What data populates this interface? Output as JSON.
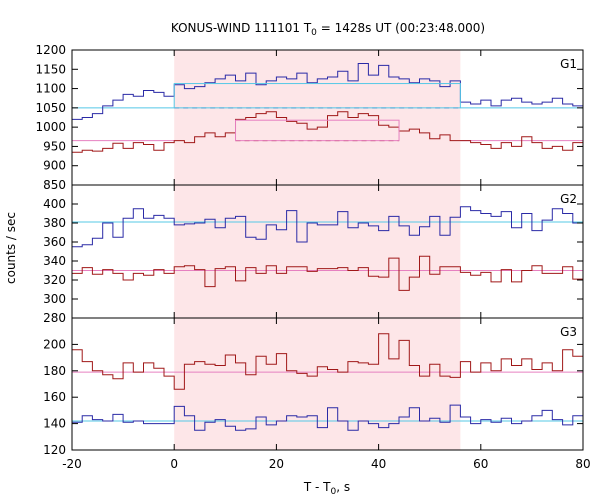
{
  "chart_data": {
    "type": "line",
    "title": "KONUS-WIND 111101 T₀ = 1428s UT (00:23:48.000)",
    "title_parts": {
      "prefix": "KONUS-WIND 111101 T",
      "sub": "0",
      "suffix": " = 1428s UT (00:23:48.000)"
    },
    "xlabel": "T - T₀, s",
    "xlabel_parts": {
      "prefix": "T - T",
      "sub": "0",
      "suffix": ", s"
    },
    "ylabel": "counts / sec",
    "xlim": [
      -20,
      80
    ],
    "x_ticks": [
      -20,
      0,
      20,
      40,
      60,
      80
    ],
    "shaded_interval": {
      "x": [
        0,
        56
      ],
      "color": "#fde6e8"
    },
    "colors": {
      "blue": "#2a2aa6",
      "red": "#a01818",
      "cyan": "#55c8e6",
      "pink": "#e680c0",
      "frame": "#000000"
    },
    "panels": [
      {
        "name": "G1",
        "ylim": [
          850,
          1200
        ],
        "y_ticks": [
          850,
          900,
          950,
          1000,
          1050,
          1100,
          1150,
          1200
        ],
        "series": [
          {
            "color": "blue",
            "x": [
              -20,
              -18,
              -16,
              -14,
              -12,
              -10,
              -8,
              -6,
              -4,
              -2,
              0,
              2,
              4,
              6,
              8,
              10,
              12,
              14,
              16,
              18,
              20,
              22,
              24,
              26,
              28,
              30,
              32,
              34,
              36,
              38,
              40,
              42,
              44,
              46,
              48,
              50,
              52,
              54,
              56,
              58,
              60,
              62,
              64,
              66,
              68,
              70,
              72,
              74,
              76,
              78
            ],
            "y": [
              1020,
              1025,
              1035,
              1055,
              1070,
              1085,
              1080,
              1095,
              1090,
              1080,
              1110,
              1100,
              1105,
              1115,
              1125,
              1135,
              1120,
              1140,
              1110,
              1120,
              1130,
              1125,
              1140,
              1115,
              1125,
              1130,
              1145,
              1120,
              1165,
              1135,
              1160,
              1130,
              1125,
              1115,
              1125,
              1120,
              1105,
              1120,
              1065,
              1060,
              1070,
              1055,
              1070,
              1075,
              1065,
              1060,
              1065,
              1075,
              1060,
              1055
            ]
          },
          {
            "color": "red",
            "x": [
              -20,
              -18,
              -16,
              -14,
              -12,
              -10,
              -8,
              -6,
              -4,
              -2,
              0,
              2,
              4,
              6,
              8,
              10,
              12,
              14,
              16,
              18,
              20,
              22,
              24,
              26,
              28,
              30,
              32,
              34,
              36,
              38,
              40,
              42,
              44,
              46,
              48,
              50,
              52,
              54,
              56,
              58,
              60,
              62,
              64,
              66,
              68,
              70,
              72,
              74,
              76,
              78
            ],
            "y": [
              935,
              940,
              938,
              945,
              958,
              945,
              960,
              955,
              940,
              960,
              965,
              960,
              975,
              985,
              975,
              985,
              1020,
              1025,
              1035,
              1040,
              1025,
              1015,
              1010,
              995,
              1000,
              1030,
              1040,
              1025,
              1035,
              1030,
              1005,
              1000,
              990,
              995,
              985,
              970,
              980,
              965,
              965,
              960,
              955,
              945,
              960,
              950,
              975,
              960,
              945,
              950,
              940,
              960
            ]
          }
        ],
        "levels": [
          {
            "color": "cyan",
            "y": 1050,
            "x": [
              -20,
              0
            ],
            "style": "solid"
          },
          {
            "color": "cyan",
            "y": 1050,
            "x": [
              56,
              80
            ],
            "style": "solid"
          },
          {
            "color": "blue",
            "y": 1050,
            "x": [
              0,
              56
            ],
            "style": "dashed"
          },
          {
            "color": "pink",
            "y": 965,
            "x": [
              -20,
              0
            ],
            "style": "solid"
          },
          {
            "color": "pink",
            "y": 965,
            "x": [
              56,
              80
            ],
            "style": "solid"
          },
          {
            "color": "red",
            "y": 965,
            "x": [
              12,
              44
            ],
            "style": "dashed"
          }
        ],
        "boxes": [
          {
            "color": "cyan",
            "x": [
              0,
              56
            ],
            "y": [
              1050,
              1113
            ]
          },
          {
            "color": "pink",
            "x": [
              12,
              44
            ],
            "y": [
              965,
              1018
            ]
          }
        ]
      },
      {
        "name": "G2",
        "ylim": [
          280,
          420
        ],
        "y_ticks": [
          280,
          300,
          320,
          340,
          360,
          380,
          400
        ],
        "series": [
          {
            "color": "blue",
            "x": [
              -20,
              -18,
              -16,
              -14,
              -12,
              -10,
              -8,
              -6,
              -4,
              -2,
              0,
              2,
              4,
              6,
              8,
              10,
              12,
              14,
              16,
              18,
              20,
              22,
              24,
              26,
              28,
              30,
              32,
              34,
              36,
              38,
              40,
              42,
              44,
              46,
              48,
              50,
              52,
              54,
              56,
              58,
              60,
              62,
              64,
              66,
              68,
              70,
              72,
              74,
              76,
              78
            ],
            "y": [
              355,
              357,
              364,
              380,
              365,
              385,
              395,
              385,
              388,
              385,
              378,
              379,
              380,
              384,
              375,
              385,
              387,
              365,
              363,
              378,
              373,
              393,
              360,
              380,
              378,
              378,
              392,
              375,
              380,
              377,
              372,
              387,
              377,
              367,
              376,
              387,
              367,
              386,
              397,
              393,
              390,
              387,
              392,
              375,
              390,
              372,
              383,
              395,
              390,
              380
            ]
          },
          {
            "color": "red",
            "x": [
              -20,
              -18,
              -16,
              -14,
              -12,
              -10,
              -8,
              -6,
              -4,
              -2,
              0,
              2,
              4,
              6,
              8,
              10,
              12,
              14,
              16,
              18,
              20,
              22,
              24,
              26,
              28,
              30,
              32,
              34,
              36,
              38,
              40,
              42,
              44,
              46,
              48,
              50,
              52,
              54,
              56,
              58,
              60,
              62,
              64,
              66,
              68,
              70,
              72,
              74,
              76,
              78
            ],
            "y": [
              327,
              333,
              326,
              331,
              327,
              320,
              327,
              325,
              331,
              327,
              334,
              335,
              331,
              313,
              332,
              334,
              319,
              333,
              327,
              335,
              327,
              334,
              334,
              329,
              332,
              332,
              333,
              330,
              333,
              324,
              323,
              343,
              309,
              323,
              345,
              326,
              334,
              334,
              328,
              325,
              328,
              318,
              331,
              318,
              330,
              335,
              327,
              327,
              334,
              321
            ]
          }
        ],
        "levels": [
          {
            "color": "cyan",
            "y": 381,
            "x": [
              -20,
              80
            ],
            "style": "solid"
          },
          {
            "color": "pink",
            "y": 330,
            "x": [
              -20,
              80
            ],
            "style": "solid"
          }
        ],
        "boxes": []
      },
      {
        "name": "G3",
        "ylim": [
          120,
          220
        ],
        "y_ticks": [
          120,
          140,
          160,
          180,
          200
        ],
        "series": [
          {
            "color": "blue",
            "x": [
              -20,
              -18,
              -16,
              -14,
              -12,
              -10,
              -8,
              -6,
              -4,
              -2,
              0,
              2,
              4,
              6,
              8,
              10,
              12,
              14,
              16,
              18,
              20,
              22,
              24,
              26,
              28,
              30,
              32,
              34,
              36,
              38,
              40,
              42,
              44,
              46,
              48,
              50,
              52,
              54,
              56,
              58,
              60,
              62,
              64,
              66,
              68,
              70,
              72,
              74,
              76,
              78
            ],
            "y": [
              141,
              146,
              143,
              142,
              147,
              141,
              142,
              140,
              140,
              140,
              153,
              146,
              135,
              141,
              143,
              138,
              135,
              136,
              145,
              139,
              142,
              146,
              145,
              146,
              137,
              152,
              142,
              135,
              142,
              140,
              137,
              140,
              145,
              152,
              142,
              144,
              141,
              154,
              145,
              140,
              143,
              141,
              144,
              140,
              142,
              146,
              150,
              143,
              139,
              146
            ]
          },
          {
            "color": "red",
            "x": [
              -20,
              -18,
              -16,
              -14,
              -12,
              -10,
              -8,
              -6,
              -4,
              -2,
              0,
              2,
              4,
              6,
              8,
              10,
              12,
              14,
              16,
              18,
              20,
              22,
              24,
              26,
              28,
              30,
              32,
              34,
              36,
              38,
              40,
              42,
              44,
              46,
              48,
              50,
              52,
              54,
              56,
              58,
              60,
              62,
              64,
              66,
              68,
              70,
              72,
              74,
              76,
              78
            ],
            "y": [
              196,
              187,
              180,
              177,
              174,
              186,
              179,
              186,
              182,
              176,
              166,
              185,
              187,
              185,
              184,
              192,
              186,
              177,
              191,
              185,
              193,
              180,
              178,
              176,
              183,
              181,
              179,
              187,
              186,
              185,
              208,
              189,
              203,
              184,
              176,
              185,
              176,
              175,
              187,
              179,
              186,
              180,
              189,
              184,
              189,
              181,
              186,
              180,
              196,
              191
            ]
          }
        ],
        "levels": [
          {
            "color": "cyan",
            "y": 142,
            "x": [
              -20,
              80
            ],
            "style": "solid"
          },
          {
            "color": "pink",
            "y": 179,
            "x": [
              -20,
              80
            ],
            "style": "solid"
          }
        ],
        "boxes": []
      }
    ]
  }
}
